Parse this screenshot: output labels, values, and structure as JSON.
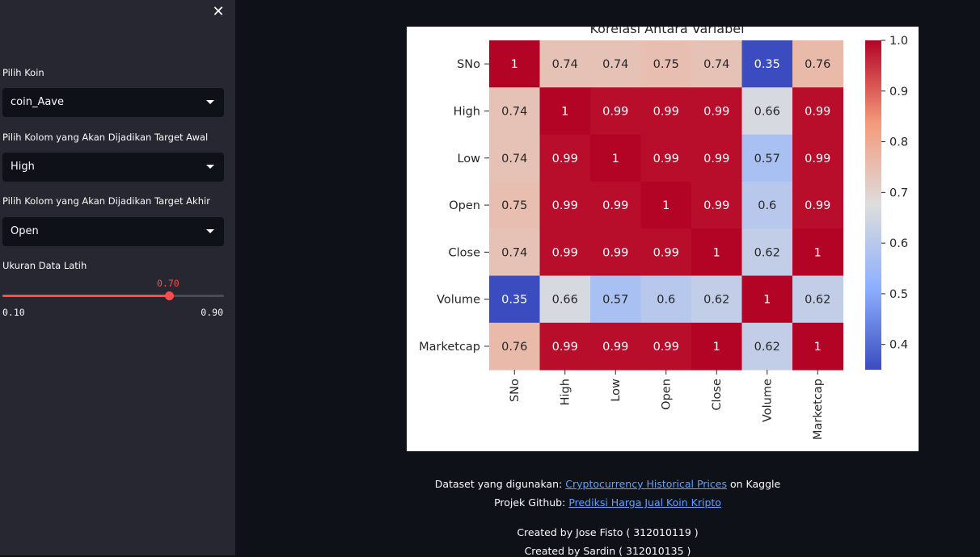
{
  "sidebar": {
    "close_icon": "✕",
    "coin_label": "Pilih Koin",
    "coin_value": "coin_Aave",
    "target_start_label": "Pilih Kolom yang Akan Dijadikan Target Awal",
    "target_start_value": "High",
    "target_end_label": "Pilih Kolom yang Akan Dijadikan Target Akhir",
    "target_end_value": "Open",
    "train_size_label": "Ukuran Data Latih",
    "train_size_value": "0.70",
    "train_size_min": "0.10",
    "train_size_max": "0.90",
    "train_size_fraction": 0.75,
    "accent_color": "#ff4b4b"
  },
  "footer": {
    "dataset_prefix": "Dataset yang digunakan:",
    "dataset_link": "Cryptocurrency Historical Prices",
    "dataset_suffix": "on Kaggle",
    "github_prefix": "Projek Github:",
    "github_link": "Prediksi Harga Jual Koin Kripto",
    "credit_1": "Created by Jose Fisto ( 312010119 )",
    "credit_2": "Created by Sardin ( 312010135 )"
  },
  "chart_data": {
    "type": "heatmap",
    "title": "Korelasi Antara Variabel",
    "colormap": "coolwarm",
    "rows": [
      "SNo",
      "High",
      "Low",
      "Open",
      "Close",
      "Volume",
      "Marketcap"
    ],
    "cols": [
      "SNo",
      "High",
      "Low",
      "Open",
      "Close",
      "Volume",
      "Marketcap"
    ],
    "values": [
      [
        1,
        0.74,
        0.74,
        0.75,
        0.74,
        0.35,
        0.76
      ],
      [
        0.74,
        1,
        0.99,
        0.99,
        0.99,
        0.66,
        0.99
      ],
      [
        0.74,
        0.99,
        1,
        0.99,
        0.99,
        0.57,
        0.99
      ],
      [
        0.75,
        0.99,
        0.99,
        1,
        0.99,
        0.6,
        0.99
      ],
      [
        0.74,
        0.99,
        0.99,
        0.99,
        1,
        0.62,
        1
      ],
      [
        0.35,
        0.66,
        0.57,
        0.6,
        0.62,
        1,
        0.62
      ],
      [
        0.76,
        0.99,
        0.99,
        0.99,
        1,
        0.62,
        1
      ]
    ],
    "colorbar_range": [
      0.35,
      1.0
    ],
    "colorbar_ticks": [
      "1.0",
      "0.9",
      "0.8",
      "0.7",
      "0.6",
      "0.5",
      "0.4"
    ],
    "colorbar_tick_values": [
      1.0,
      0.9,
      0.8,
      0.7,
      0.6,
      0.5,
      0.4
    ]
  }
}
